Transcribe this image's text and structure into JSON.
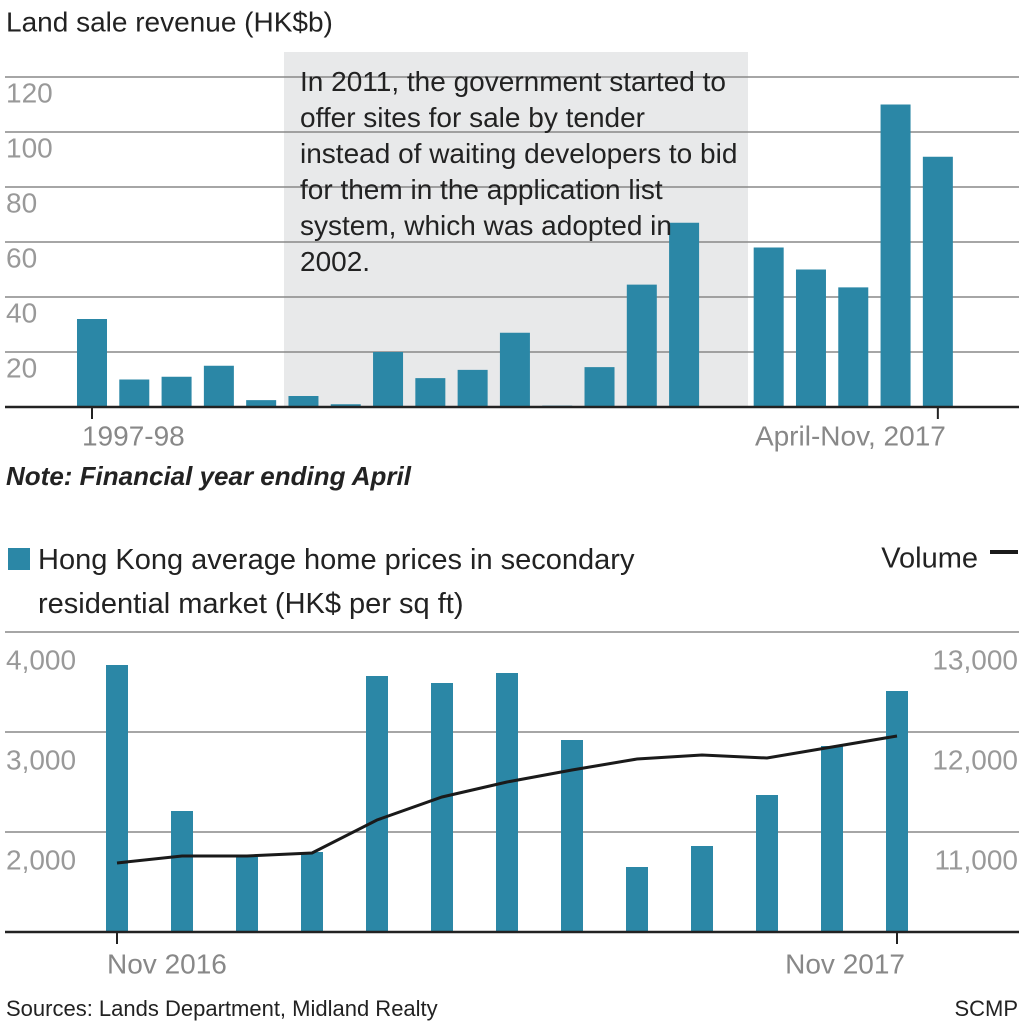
{
  "chart_data": [
    {
      "type": "bar",
      "title": "Land sale revenue (HK$b)",
      "annotation": "In 2011, the government started to offer sites for sale by tender instead of waiting developers to bid for them in the application list system, which was adopted in 2002.",
      "note": "Note: Financial year ending April",
      "categories": [
        "1997-98",
        null,
        null,
        null,
        null,
        null,
        null,
        null,
        null,
        null,
        null,
        null,
        null,
        null,
        null,
        null,
        null,
        null,
        null,
        null,
        "April-Nov, 2017"
      ],
      "values": [
        32,
        10,
        11,
        15,
        2.5,
        4,
        1,
        20,
        10.5,
        13.5,
        27,
        0.5,
        14.5,
        44.5,
        67,
        0,
        58,
        50,
        43.5,
        110,
        91
      ],
      "color": "#2b87a6",
      "ylim": [
        0,
        126
      ],
      "yticks": [
        20,
        40,
        60,
        80,
        100,
        120
      ],
      "grid": true
    },
    {
      "type": "bar-line",
      "categories": [
        "Nov 2016",
        null,
        null,
        null,
        null,
        null,
        null,
        null,
        null,
        null,
        null,
        null,
        "Nov 2017"
      ],
      "series": [
        {
          "name": "Hong Kong average home prices in secondary residential market (HK$ per sq ft)",
          "type": "bar",
          "color": "#2b87a6",
          "values": [
            3670,
            2210,
            1750,
            1800,
            3560,
            3490,
            3590,
            2920,
            1650,
            1860,
            2370,
            2860,
            3410
          ]
        },
        {
          "name": "Volume",
          "type": "line",
          "color": "#1a1a1a",
          "axis": "y2",
          "values": [
            10690,
            10760,
            10760,
            10790,
            11120,
            11350,
            11500,
            11620,
            11730,
            11770,
            11740,
            11850,
            11960
          ]
        }
      ],
      "ylim": [
        1000,
        4000
      ],
      "yticks": [
        {
          "value": 2000,
          "label": "2,000"
        },
        {
          "value": 3000,
          "label": "3,000"
        },
        {
          "value": 4000,
          "label": "4,000"
        }
      ],
      "y2lim": [
        10000,
        13000
      ],
      "y2ticks": [
        {
          "value": 11000,
          "label": "11,000"
        },
        {
          "value": 12000,
          "label": "12,000"
        },
        {
          "value": 13000,
          "label": "13,000"
        }
      ],
      "grid": true
    }
  ],
  "footer": {
    "sources": "Sources: Lands Department, Midland Realty",
    "credit": "SCMP"
  }
}
